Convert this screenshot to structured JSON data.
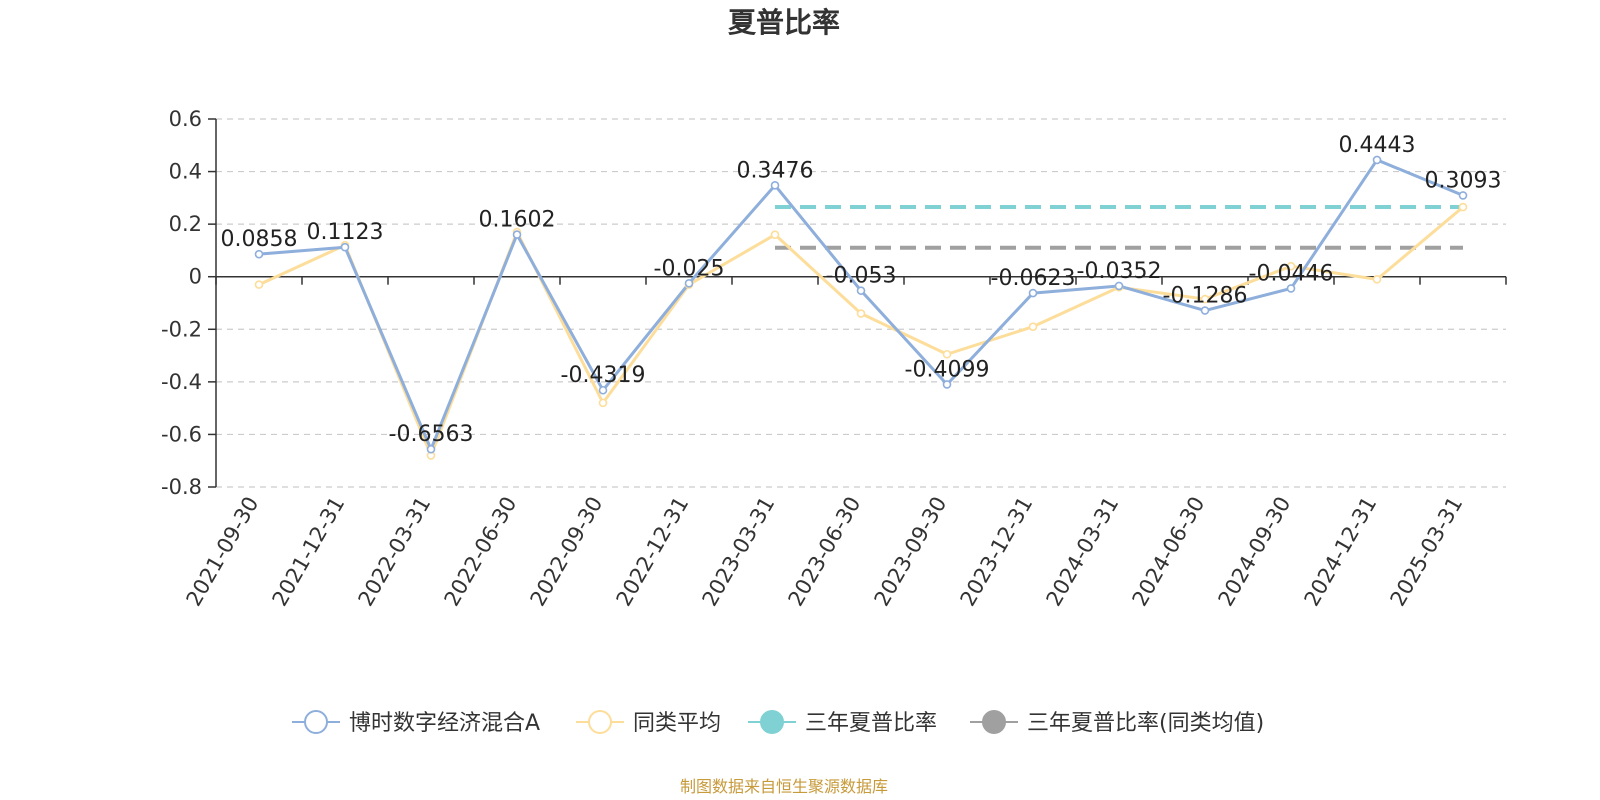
{
  "chart_data": {
    "type": "line",
    "title": "夏普比率",
    "categories": [
      "2021-09-30",
      "2021-12-31",
      "2022-03-31",
      "2022-06-30",
      "2022-09-30",
      "2022-12-31",
      "2023-03-31",
      "2023-06-30",
      "2023-09-30",
      "2023-12-31",
      "2024-03-31",
      "2024-06-30",
      "2024-09-30",
      "2024-12-31",
      "2025-03-31"
    ],
    "series": [
      {
        "name": "博时数字经济混合A",
        "color": "#8eaedb",
        "values": [
          0.0858,
          0.1123,
          -0.6563,
          0.1602,
          -0.4319,
          -0.025,
          0.3476,
          -0.053,
          -0.4099,
          -0.0623,
          -0.0352,
          -0.1286,
          -0.0446,
          0.4443,
          0.3093
        ],
        "labels": [
          "0.0858",
          "0.1123",
          "-0.6563",
          "0.1602",
          "-0.4319",
          "-0.025",
          "0.3476",
          "-0.053",
          "-0.4099",
          "-0.0623",
          "-0.0352",
          "-0.1286",
          "-0.0446",
          "0.4443",
          "0.3093"
        ]
      },
      {
        "name": "同类平均",
        "color": "#fddd9a",
        "values": [
          -0.03,
          0.12,
          -0.68,
          0.17,
          -0.48,
          -0.03,
          0.16,
          -0.14,
          -0.295,
          -0.19,
          -0.04,
          -0.085,
          0.04,
          -0.01,
          0.265
        ]
      }
    ],
    "reference_lines": [
      {
        "name": "三年夏普比率",
        "color": "#7fd1d3",
        "value": 0.265,
        "from": "2023-03-31",
        "to": "2025-03-31"
      },
      {
        "name": "三年夏普比率(同类均值)",
        "color": "#a0a0a0",
        "value": 0.11,
        "from": "2023-03-31",
        "to": "2025-03-31"
      }
    ],
    "y_ticks": [
      "0.6",
      "0.4",
      "0.2",
      "0",
      "-0.2",
      "-0.4",
      "-0.6",
      "-0.8"
    ],
    "ylim": [
      -0.8,
      0.6
    ],
    "grid": true,
    "legend_position": "bottom",
    "source": "制图数据来自恒生聚源数据库"
  }
}
